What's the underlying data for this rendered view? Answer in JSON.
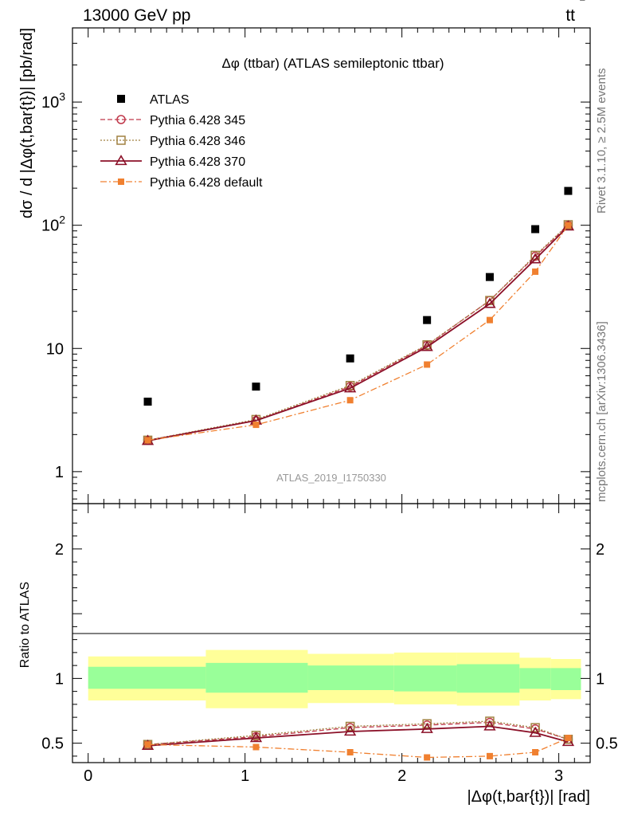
{
  "header": {
    "beam": "13000 GeV pp",
    "process_main": "tt",
    "process_bar": "‾"
  },
  "side": {
    "rivet": "Rivet 3.1.10, ≥ 2.5M events",
    "source": "mcplots.cern.ch [arXiv:1306.3436]"
  },
  "colors": {
    "atlas": "#000000",
    "p345": "#c0394b",
    "p346": "#a08040",
    "p370": "#8b1028",
    "pdefault": "#f08030",
    "band_inner": "#99ff99",
    "band_outer": "#ffff99"
  },
  "chart_data": [
    {
      "type": "line",
      "title": "Δφ (ttbar) (ATLAS semileptonic ttbar)",
      "ylabel": "dσ / d |Δφ(t,bar{t})| [pb/rad]",
      "yscale": "log",
      "ylim": [
        0.55,
        4000
      ],
      "xlim": [
        -0.1,
        3.2
      ],
      "y_ticks": [
        {
          "value": 1,
          "label": "1"
        },
        {
          "value": 10,
          "label": "10"
        },
        {
          "value": 100,
          "label": "10",
          "sup": "2"
        },
        {
          "value": 1000,
          "label": "10",
          "sup": "3"
        }
      ],
      "watermark": "ATLAS_2019_I1750330",
      "x": [
        0.38,
        1.07,
        1.67,
        2.16,
        2.56,
        2.85,
        3.06
      ],
      "series": [
        {
          "name": "ATLAS",
          "key": "atlas",
          "values": [
            3.7,
            4.9,
            8.3,
            17,
            38,
            93,
            190
          ],
          "style": "square-marker"
        },
        {
          "name": "Pythia 6.428 345",
          "key": "p345",
          "values": [
            1.8,
            2.6,
            4.9,
            10.6,
            24.5,
            56,
            100
          ],
          "style": "dashed-open-circle"
        },
        {
          "name": "Pythia 6.428 346",
          "key": "p346",
          "values": [
            1.8,
            2.65,
            5.0,
            10.7,
            24.5,
            57,
            101
          ],
          "style": "dotted-open-square"
        },
        {
          "name": "Pythia 6.428 370",
          "key": "p370",
          "values": [
            1.78,
            2.6,
            4.75,
            10.3,
            23,
            53,
            98
          ],
          "style": "solid-open-triangle"
        },
        {
          "name": "Pythia 6.428 default",
          "key": "pdefault",
          "values": [
            1.8,
            2.4,
            3.8,
            7.4,
            17,
            42,
            100
          ],
          "style": "dashdot-filled-square"
        }
      ]
    },
    {
      "type": "line",
      "ylabel": "Ratio to ATLAS",
      "xlabel": "|Δφ(t,bar{t})| [rad]",
      "ylim": [
        0.35,
        2.35
      ],
      "xlim": [
        -0.1,
        3.2
      ],
      "x_ticks": [
        0,
        1,
        2,
        3
      ],
      "y_ticks": [
        0.5,
        1,
        2
      ],
      "bins": [
        {
          "lo": 0.0,
          "hi": 0.75,
          "inner": [
            0.92,
            1.09
          ],
          "outer": [
            0.83,
            1.17
          ]
        },
        {
          "lo": 0.75,
          "hi": 1.4,
          "inner": [
            0.89,
            1.12
          ],
          "outer": [
            0.77,
            1.22
          ]
        },
        {
          "lo": 1.4,
          "hi": 1.95,
          "inner": [
            0.91,
            1.1
          ],
          "outer": [
            0.81,
            1.19
          ]
        },
        {
          "lo": 1.95,
          "hi": 2.35,
          "inner": [
            0.9,
            1.1
          ],
          "outer": [
            0.8,
            1.2
          ]
        },
        {
          "lo": 2.35,
          "hi": 2.75,
          "inner": [
            0.89,
            1.11
          ],
          "outer": [
            0.79,
            1.2
          ]
        },
        {
          "lo": 2.75,
          "hi": 2.95,
          "inner": [
            0.92,
            1.08
          ],
          "outer": [
            0.83,
            1.16
          ]
        },
        {
          "lo": 2.95,
          "hi": 3.1416,
          "inner": [
            0.91,
            1.08
          ],
          "outer": [
            0.84,
            1.15
          ]
        }
      ],
      "x": [
        0.38,
        1.07,
        1.67,
        2.16,
        2.56,
        2.85,
        3.06
      ],
      "series": [
        {
          "name": "Pythia 6.428 345",
          "key": "p345",
          "values": [
            0.49,
            0.55,
            0.62,
            0.64,
            0.66,
            0.61,
            0.53
          ]
        },
        {
          "name": "Pythia 6.428 346",
          "key": "p346",
          "values": [
            0.49,
            0.56,
            0.63,
            0.65,
            0.67,
            0.62,
            0.53
          ]
        },
        {
          "name": "Pythia 6.428 370",
          "key": "p370",
          "values": [
            0.48,
            0.54,
            0.59,
            0.61,
            0.63,
            0.58,
            0.51
          ]
        },
        {
          "name": "Pythia 6.428 default",
          "key": "pdefault",
          "values": [
            0.49,
            0.47,
            0.43,
            0.39,
            0.4,
            0.43,
            0.54
          ]
        }
      ]
    }
  ]
}
